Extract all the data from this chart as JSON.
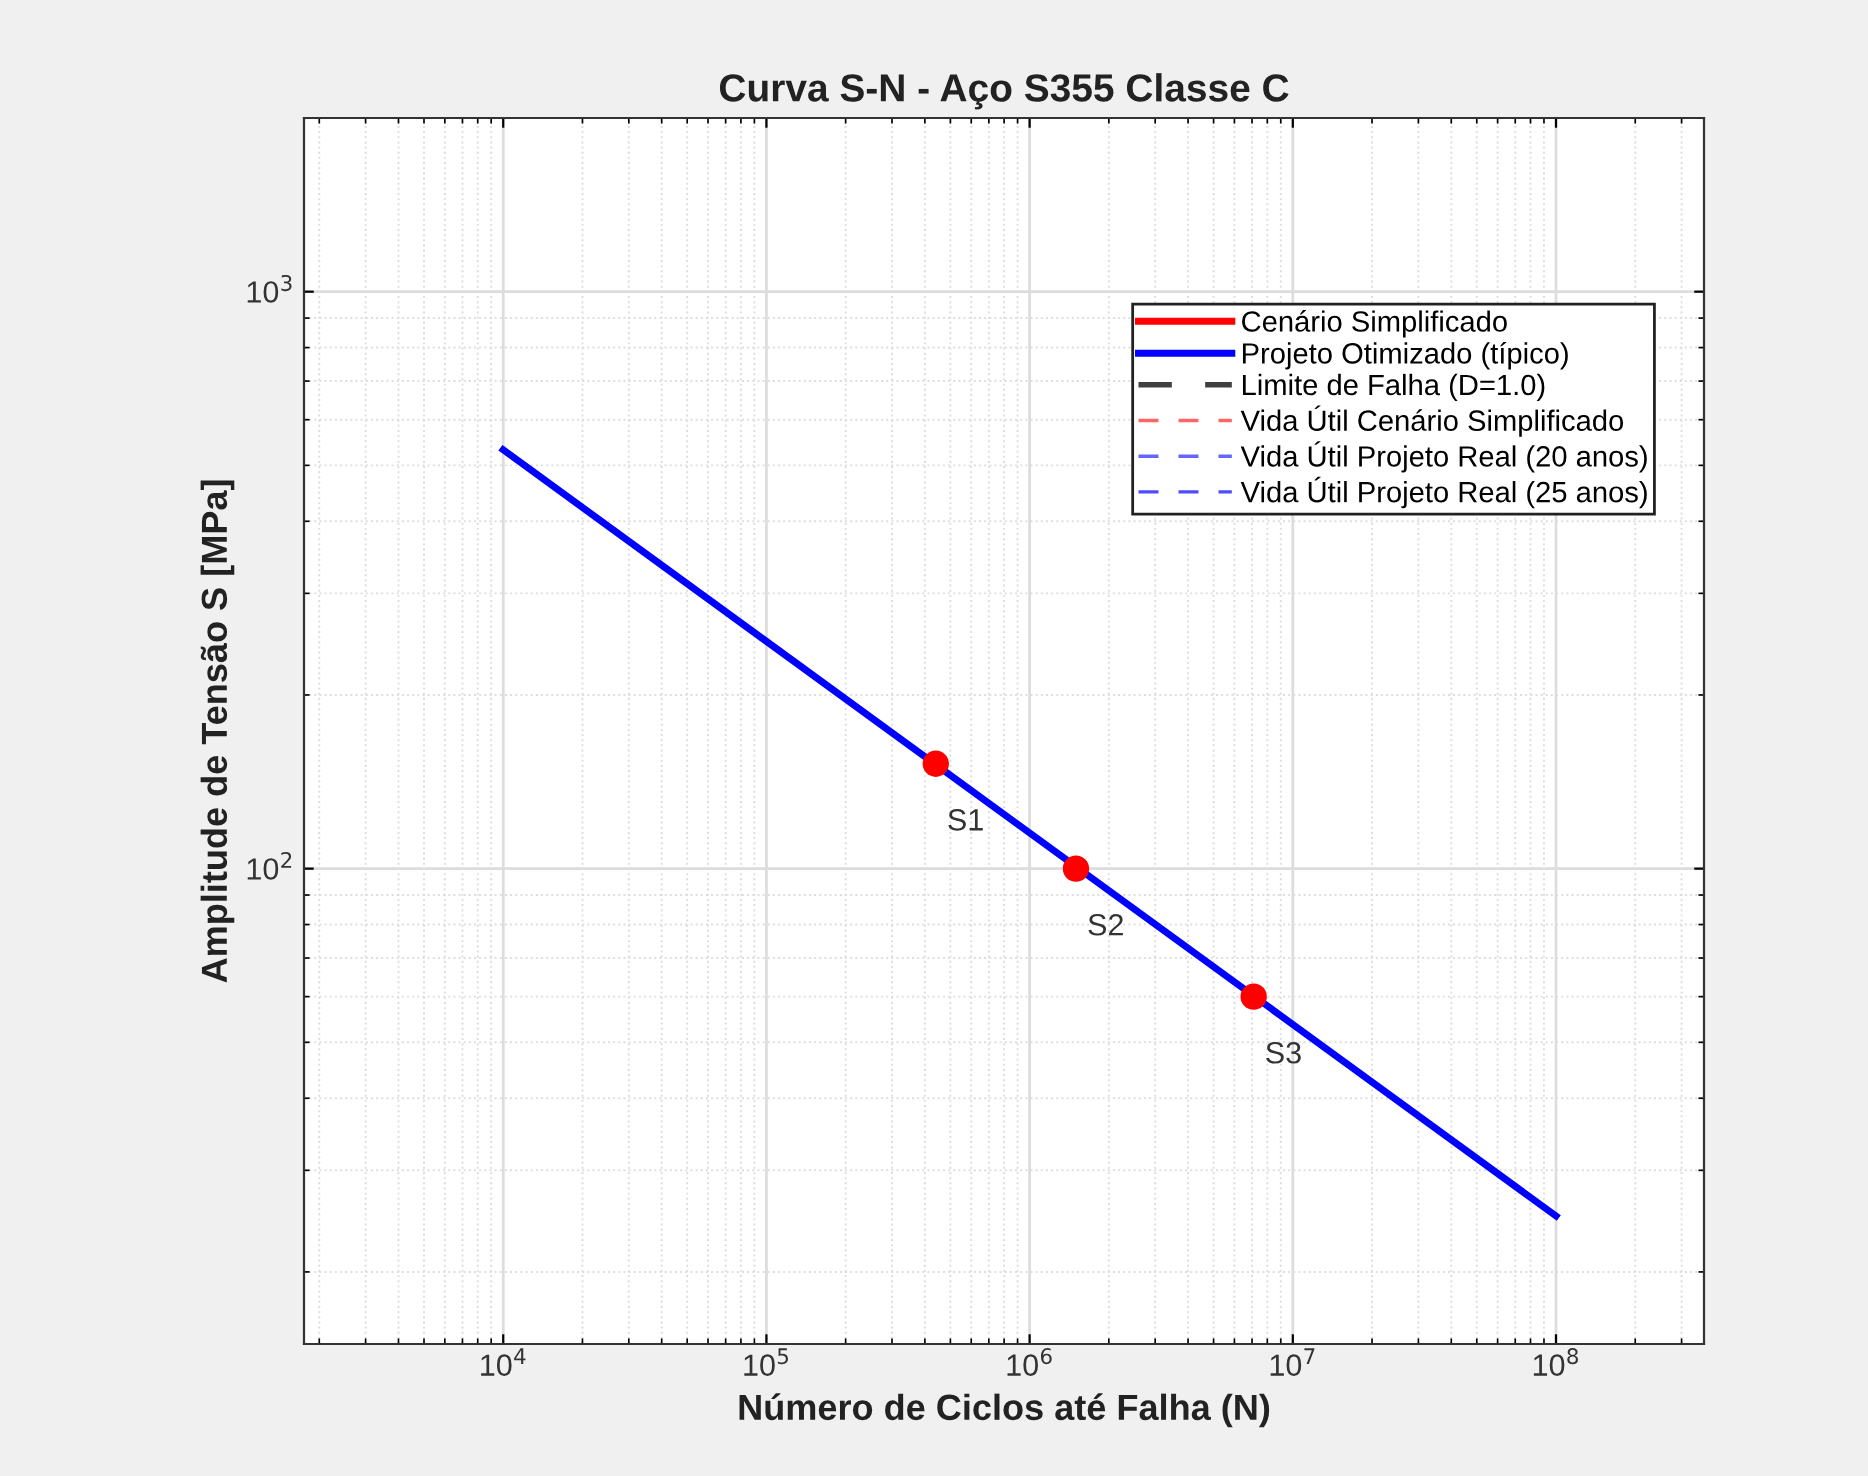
{
  "chart_data": {
    "type": "line",
    "title": "Curva S-N - Aço S355 Classe C",
    "xlabel": "Número de Ciclos até Falha (N)",
    "ylabel": "Amplitude de Tensão S [MPa]",
    "log": "xy",
    "grid": true,
    "legend": "top right",
    "xlim": [
      1750,
      365000000
    ],
    "ylim": [
      15,
      2000
    ],
    "xticks": [
      {
        "value": 10000,
        "label": "10$^{4}$"
      },
      {
        "value": 100000,
        "label": "10$^{5}$"
      },
      {
        "value": 1000000,
        "label": "10$^{6}$"
      },
      {
        "value": 10000000,
        "label": "10$^{7}$"
      },
      {
        "value": 100000000,
        "label": "10$^{8}$"
      }
    ],
    "yticks": [
      {
        "value": 100,
        "label": "10$^{2}$"
      },
      {
        "value": 1000,
        "label": "10$^{3}$"
      }
    ],
    "series": [
      {
        "name": "Cenário Simplificado",
        "color": "#ff0000",
        "line_style": "solid"
      },
      {
        "name": "Projeto Otimizado (típico)",
        "color": "#0000ff",
        "line_style": "solid",
        "x": [
          10000,
          100000000
        ],
        "values": [
          532,
          25
        ]
      },
      {
        "name": "Limite de Falha (D=1.0)",
        "color": "#404040",
        "line_style": "dashed"
      },
      {
        "name": "Vida Útil Cenário Simplificado",
        "color": "#ff6666",
        "line_style": "dashed"
      },
      {
        "name": "Vida Útil Projeto Real (20 anos)",
        "color": "#6666ff",
        "line_style": "dashed"
      },
      {
        "name": "Vida Útil Projeto Real (25 anos)",
        "color": "#4d4dff",
        "line_style": "dashed"
      },
      {
        "type": "scatter",
        "color": "#ff0000",
        "marker": "circle",
        "x": [
          440000,
          1500000,
          7100000
        ],
        "values": [
          152,
          100,
          60
        ]
      }
    ],
    "annotations": [
      {
        "text": "S1",
        "x": 440000,
        "y": 152
      },
      {
        "text": "S2",
        "x": 1500000,
        "y": 100
      },
      {
        "text": "S3",
        "x": 7100000,
        "y": 60
      }
    ]
  }
}
